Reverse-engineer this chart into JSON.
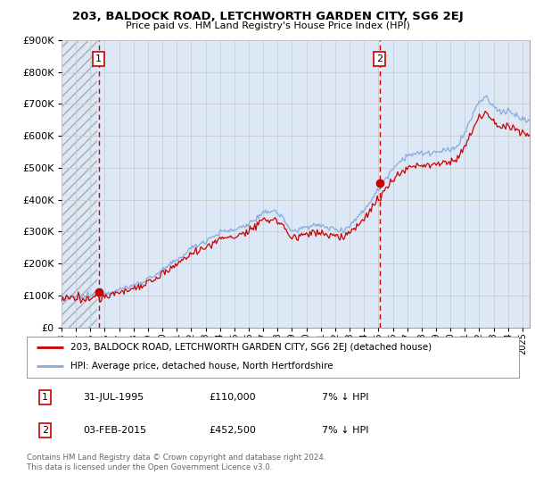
{
  "title": "203, BALDOCK ROAD, LETCHWORTH GARDEN CITY, SG6 2EJ",
  "subtitle": "Price paid vs. HM Land Registry's House Price Index (HPI)",
  "ylim": [
    0,
    900000
  ],
  "yticks": [
    0,
    100000,
    200000,
    300000,
    400000,
    500000,
    600000,
    700000,
    800000,
    900000
  ],
  "xlim_start": 1993.0,
  "xlim_end": 2025.5,
  "transaction1_x": 1995.58,
  "transaction1_y": 110000,
  "transaction2_x": 2015.08,
  "transaction2_y": 452500,
  "line_color_property": "#cc0000",
  "line_color_hpi": "#88aadd",
  "vline_color": "#cc0000",
  "grid_color": "#cccccc",
  "chart_bg_color": "#dce8f5",
  "hatch_region_end": 1995.5,
  "legend_label_property": "203, BALDOCK ROAD, LETCHWORTH GARDEN CITY, SG6 2EJ (detached house)",
  "legend_label_hpi": "HPI: Average price, detached house, North Hertfordshire",
  "footer": "Contains HM Land Registry data © Crown copyright and database right 2024.\nThis data is licensed under the Open Government Licence v3.0.",
  "table_rows": [
    [
      "1",
      "31-JUL-1995",
      "£110,000",
      "7% ↓ HPI"
    ],
    [
      "2",
      "03-FEB-2015",
      "£452,500",
      "7% ↓ HPI"
    ]
  ],
  "background_color": "#ffffff"
}
